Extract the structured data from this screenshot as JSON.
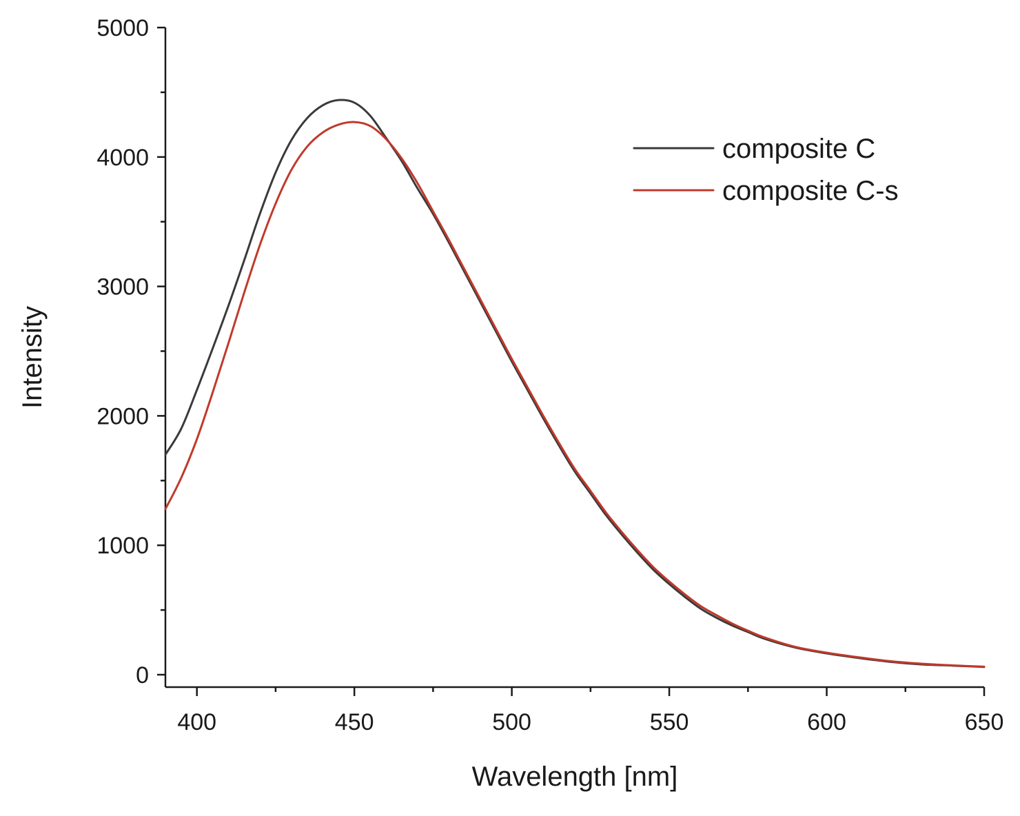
{
  "chart_data": {
    "type": "line",
    "title": "",
    "xlabel": "Wavelength [nm]",
    "ylabel": "Intensity",
    "xlim": [
      390,
      650
    ],
    "ylim": [
      -80,
      5000
    ],
    "xticks": [
      400,
      450,
      500,
      550,
      600,
      650
    ],
    "xticks_minor": [
      425,
      475,
      525,
      575,
      625
    ],
    "yticks": [
      0,
      1000,
      2000,
      3000,
      4000,
      5000
    ],
    "yticks_minor": [
      500,
      1500,
      2500,
      3500,
      4500
    ],
    "xtick_labels": [
      "400",
      "450",
      "500",
      "550",
      "600",
      "650"
    ],
    "ytick_labels": [
      "0",
      "1000",
      "2000",
      "3000",
      "4000",
      "5000"
    ],
    "legend_position": "top-right",
    "grid": false,
    "series": [
      {
        "name": "composite C",
        "color": "#3a3a3a",
        "x": [
          390,
          395,
          400,
          405,
          410,
          415,
          420,
          425,
          430,
          435,
          440,
          445,
          450,
          455,
          460,
          465,
          470,
          475,
          480,
          485,
          490,
          495,
          500,
          505,
          510,
          515,
          520,
          525,
          530,
          535,
          540,
          545,
          550,
          555,
          560,
          565,
          570,
          575,
          580,
          590,
          600,
          610,
          620,
          630,
          640,
          650
        ],
        "y": [
          1700,
          1900,
          2200,
          2520,
          2850,
          3200,
          3560,
          3880,
          4130,
          4300,
          4400,
          4440,
          4420,
          4320,
          4150,
          3970,
          3760,
          3560,
          3340,
          3110,
          2880,
          2650,
          2420,
          2200,
          1980,
          1770,
          1570,
          1400,
          1230,
          1080,
          940,
          810,
          700,
          600,
          510,
          440,
          380,
          330,
          280,
          210,
          165,
          130,
          100,
          80,
          70,
          60
        ]
      },
      {
        "name": "composite C-s",
        "color": "#c0392b",
        "x": [
          390,
          395,
          400,
          405,
          410,
          415,
          420,
          425,
          430,
          435,
          440,
          445,
          450,
          455,
          460,
          465,
          470,
          475,
          480,
          485,
          490,
          495,
          500,
          505,
          510,
          515,
          520,
          525,
          530,
          535,
          540,
          545,
          550,
          555,
          560,
          565,
          570,
          575,
          580,
          590,
          600,
          610,
          620,
          630,
          640,
          650
        ],
        "y": [
          1280,
          1520,
          1820,
          2180,
          2560,
          2950,
          3320,
          3640,
          3900,
          4080,
          4190,
          4250,
          4270,
          4240,
          4140,
          3990,
          3800,
          3580,
          3360,
          3130,
          2900,
          2670,
          2440,
          2220,
          2000,
          1790,
          1590,
          1420,
          1250,
          1100,
          960,
          830,
          720,
          620,
          530,
          460,
          395,
          340,
          290,
          215,
          170,
          135,
          105,
          85,
          72,
          62
        ]
      }
    ]
  }
}
